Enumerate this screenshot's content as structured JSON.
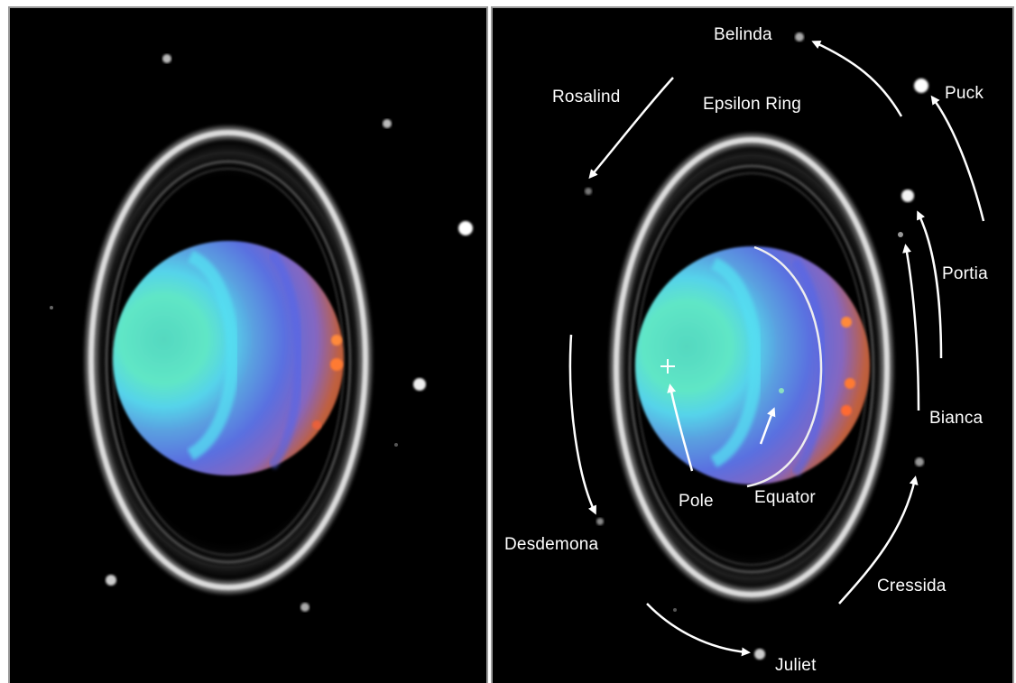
{
  "labels": {
    "belinda": "Belinda",
    "puck": "Puck",
    "rosalind": "Rosalind",
    "epsilon_ring": "Epsilon Ring",
    "portia": "Portia",
    "bianca": "Bianca",
    "desdemona": "Desdemona",
    "pole": "Pole",
    "equator": "Equator",
    "cressida": "Cressida",
    "juliet": "Juliet"
  },
  "colors": {
    "background": "#000000",
    "label_text": "#ffffff",
    "panel_border": "#9a9a9a",
    "planet_pole": "#66e6c8",
    "planet_mid": "#5a78e6",
    "planet_limb": "#c85a3c",
    "ring": "#e0e0e0"
  }
}
